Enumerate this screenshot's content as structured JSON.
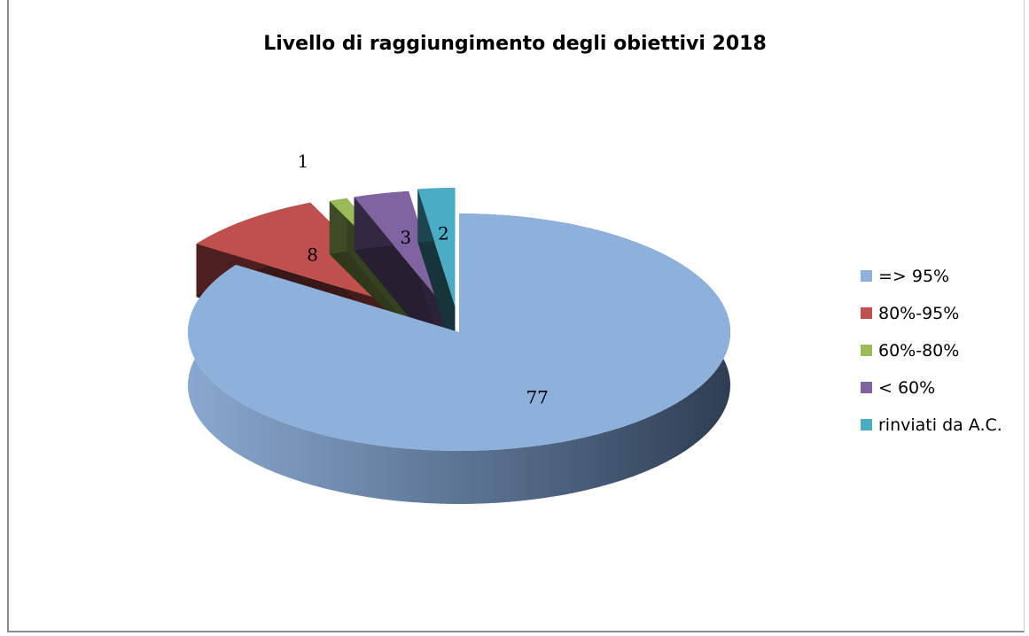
{
  "chart_data": {
    "type": "pie",
    "style": "3d-exploded",
    "title": "Livello di raggiungimento degli obiettivi 2018",
    "categories": [
      "=> 95%",
      "80%-95%",
      "60%-80%",
      "< 60%",
      "rinviati da A.C."
    ],
    "values": [
      77,
      8,
      1,
      3,
      2
    ],
    "data_labels": [
      "77",
      "8",
      "1",
      "3",
      "2"
    ],
    "colors": [
      "#8eb1dc",
      "#c0504d",
      "#9bbb59",
      "#8064a2",
      "#4bacc6"
    ],
    "legend_position": "right"
  }
}
